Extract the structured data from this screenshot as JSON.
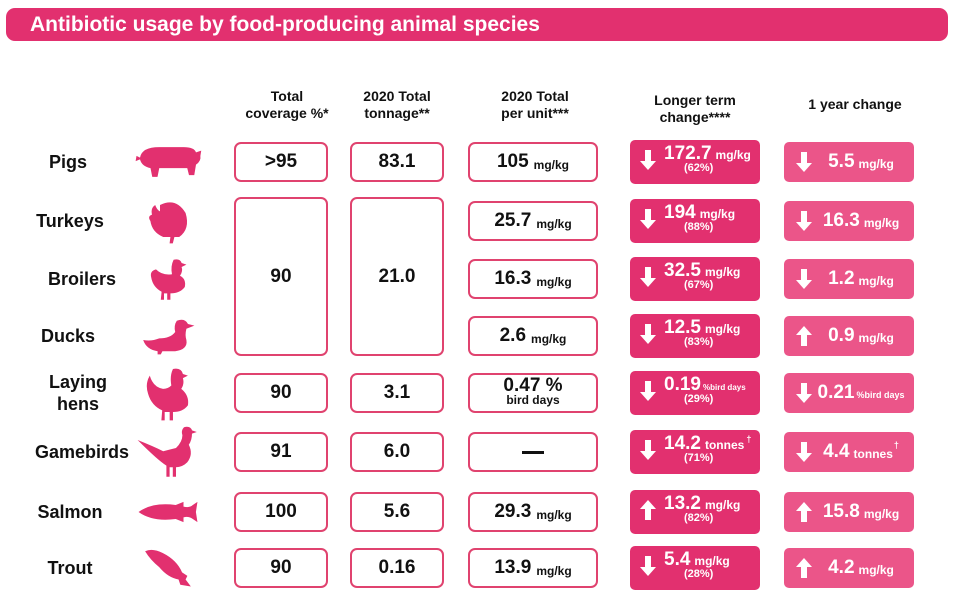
{
  "title": "Antibiotic usage by food-producing animal species",
  "chart_data": {
    "type": "table",
    "columns": [
      "Total\ncoverage %*",
      "2020 Total\ntonnage**",
      "2020 Total\nper unit***",
      "Longer term\nchange****",
      "1 year change"
    ],
    "rows": [
      {
        "species": "Pigs",
        "coverage": ">95",
        "tonnage": "83.1",
        "per_unit": {
          "value": "105",
          "unit": "mg/kg"
        },
        "long_term": {
          "direction": "down",
          "value": "172.7",
          "unit": "mg/kg",
          "pct": "(62%)"
        },
        "one_year": {
          "direction": "down",
          "value": "5.5",
          "unit": "mg/kg"
        }
      },
      {
        "species": "Turkeys",
        "coverage": "90",
        "tonnage": "21.0",
        "per_unit": {
          "value": "25.7",
          "unit": "mg/kg"
        },
        "long_term": {
          "direction": "down",
          "value": "194",
          "unit": "mg/kg",
          "pct": "(88%)"
        },
        "one_year": {
          "direction": "down",
          "value": "16.3",
          "unit": "mg/kg"
        }
      },
      {
        "species": "Broilers",
        "coverage": "90",
        "tonnage": "21.0",
        "per_unit": {
          "value": "16.3",
          "unit": "mg/kg"
        },
        "long_term": {
          "direction": "down",
          "value": "32.5",
          "unit": "mg/kg",
          "pct": "(67%)"
        },
        "one_year": {
          "direction": "down",
          "value": "1.2",
          "unit": "mg/kg"
        }
      },
      {
        "species": "Ducks",
        "coverage": "90",
        "tonnage": "21.0",
        "per_unit": {
          "value": "2.6",
          "unit": "mg/kg"
        },
        "long_term": {
          "direction": "down",
          "value": "12.5",
          "unit": "mg/kg",
          "pct": "(83%)"
        },
        "one_year": {
          "direction": "up",
          "value": "0.9",
          "unit": "mg/kg"
        }
      },
      {
        "species": "Laying\nhens",
        "coverage": "90",
        "tonnage": "3.1",
        "per_unit": {
          "value": "0.47 %",
          "sub": "bird days"
        },
        "long_term": {
          "direction": "down",
          "value": "0.19",
          "unit": "%bird days",
          "pct": "(29%)"
        },
        "one_year": {
          "direction": "down",
          "value": "0.21",
          "unit": "%bird days"
        }
      },
      {
        "species": "Gamebirds",
        "coverage": "91",
        "tonnage": "6.0",
        "per_unit": {
          "value": "—",
          "unit": ""
        },
        "long_term": {
          "direction": "down",
          "value": "14.2",
          "unit": "tonnes",
          "dagger": "†",
          "pct": "(71%)"
        },
        "one_year": {
          "direction": "down",
          "value": "4.4",
          "unit": "tonnes",
          "dagger": "†"
        }
      },
      {
        "species": "Salmon",
        "coverage": "100",
        "tonnage": "5.6",
        "per_unit": {
          "value": "29.3",
          "unit": "mg/kg"
        },
        "long_term": {
          "direction": "up",
          "value": "13.2",
          "unit": "mg/kg",
          "pct": "(82%)"
        },
        "one_year": {
          "direction": "up",
          "value": "15.8",
          "unit": "mg/kg"
        }
      },
      {
        "species": "Trout",
        "coverage": "90",
        "tonnage": "0.16",
        "per_unit": {
          "value": "13.9",
          "unit": "mg/kg"
        },
        "long_term": {
          "direction": "down",
          "value": "5.4",
          "unit": "mg/kg",
          "pct": "(28%)"
        },
        "one_year": {
          "direction": "up",
          "value": "4.2",
          "unit": "mg/kg"
        }
      }
    ],
    "merged_group": {
      "rows": [
        "Turkeys",
        "Broilers",
        "Ducks"
      ],
      "coverage": "90",
      "tonnage": "21.0"
    }
  },
  "icons": [
    "pig-icon",
    "turkey-icon",
    "chicken-icon",
    "duck-icon",
    "hen-icon",
    "pheasant-icon",
    "salmon-icon",
    "trout-icon"
  ],
  "colors": {
    "banner": "#e2306f",
    "long_term_fill": "#e2306f",
    "one_year_fill": "#eb5589",
    "box_border": "#e0436f"
  }
}
